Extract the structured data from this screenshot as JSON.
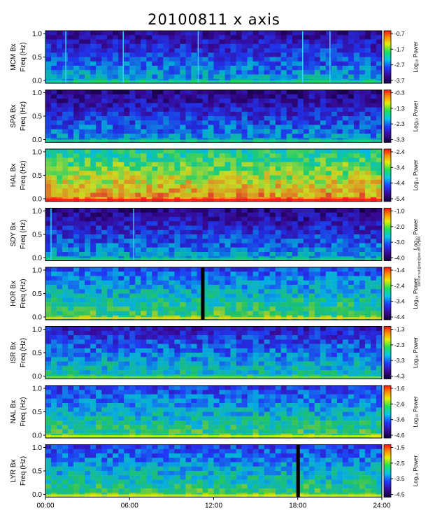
{
  "title": "20100811  x axis",
  "xticks": [
    "00:00",
    "06:00",
    "12:00",
    "18:00",
    "24:00"
  ],
  "side_note": "wwl.hi.ucr.ws@ubs@zm.ucy.am",
  "chart_data": {
    "type": "heatmap",
    "title": "20100811  x axis",
    "xlabel": "",
    "x_range": [
      "00:00",
      "24:00"
    ],
    "y_range": [
      0.0,
      1.0
    ],
    "colorbar_label": "Log₁₀ Power",
    "panels": [
      {
        "station": "MCM Bx",
        "ylabel": "Freq (Hz)",
        "yticks": [
          "1.0",
          "0.5",
          "0.0"
        ],
        "colorbar_ticks": [
          "-0.7",
          "-1.7",
          "-2.7",
          "-3.7"
        ],
        "level": 0.15,
        "vlines": [
          0.0,
          1.45,
          5.55,
          10.9,
          18.35,
          20.3
        ]
      },
      {
        "station": "SPA Bx",
        "ylabel": "Freq (Hz)",
        "yticks": [
          "1.0",
          "0.5",
          "0.0"
        ],
        "colorbar_ticks": [
          "-0.3",
          "-1.3",
          "-2.3",
          "-3.3"
        ],
        "level": 0.12,
        "vlines": []
      },
      {
        "station": "HAL Bx",
        "ylabel": "Freq (Hz)",
        "yticks": [
          "1.0",
          "0.5",
          "0.0"
        ],
        "colorbar_ticks": [
          "-2.4",
          "-3.4",
          "-4.4",
          "-5.4"
        ],
        "level": 0.55,
        "vlines": []
      },
      {
        "station": "SDY Bx",
        "ylabel": "Freq (Hz)",
        "yticks": [
          "1.0",
          "0.5",
          "0.0"
        ],
        "colorbar_ticks": [
          "-1.0",
          "-2.0",
          "-3.0",
          "-4.0"
        ],
        "level": 0.12,
        "vlines": [
          0.4,
          6.3
        ]
      },
      {
        "station": "HOR Bx",
        "ylabel": "Freq (Hz)",
        "yticks": [
          "1.0",
          "0.5",
          "0.0"
        ],
        "colorbar_ticks": [
          "-1.4",
          "-2.4",
          "-3.4",
          "-4.4"
        ],
        "level": 0.32,
        "vlines": [],
        "gaps": [
          11.1
        ]
      },
      {
        "station": "ISR Bx",
        "ylabel": "Freq (Hz)",
        "yticks": [
          "1.0",
          "0.5",
          "0.0"
        ],
        "colorbar_ticks": [
          "-1.3",
          "-2.3",
          "-3.3",
          "-4.3"
        ],
        "level": 0.22,
        "vlines": []
      },
      {
        "station": "NAL Bx",
        "ylabel": "Freq (Hz)",
        "yticks": [
          "1.0",
          "0.5",
          "0.0"
        ],
        "colorbar_ticks": [
          "-1.6",
          "-2.6",
          "-3.6",
          "-4.6"
        ],
        "level": 0.3,
        "vlines": []
      },
      {
        "station": "LYR Bx",
        "ylabel": "Freq (Hz)",
        "yticks": [
          "1.0",
          "0.5",
          "0.0"
        ],
        "colorbar_ticks": [
          "-1.5",
          "-2.5",
          "-3.5",
          "-4.5"
        ],
        "level": 0.3,
        "vlines": [],
        "gaps": [
          17.9
        ]
      }
    ]
  }
}
